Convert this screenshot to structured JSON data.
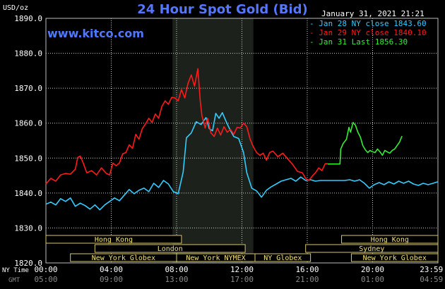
{
  "header": {
    "title": "24 Hour Spot Gold (Bid)",
    "website": "www.kitco.com",
    "timestamp": "January 31, 2021 21:21",
    "unit_label": "USD/oz"
  },
  "legend": [
    {
      "label": "Jan 28 NY close 1843.60",
      "color": "#33ccff"
    },
    {
      "label": "Jan 29 NY close 1840.10",
      "color": "#ff1a1a"
    },
    {
      "label": "Jan 31 Last 1856.30",
      "color": "#33ee33"
    }
  ],
  "markets": [
    {
      "label": "Hong Kong",
      "row": 0,
      "start": 0,
      "end": 8.3
    },
    {
      "label": "Hong Kong",
      "row": 0,
      "start": 18.1,
      "end": 24
    },
    {
      "label": "London",
      "row": 1,
      "start": 3,
      "end": 12.2
    },
    {
      "label": "Sydney",
      "row": 1,
      "start": 15.9,
      "end": 24
    },
    {
      "label": "New York Globex",
      "row": 2,
      "start": 1.5,
      "end": 8.0
    },
    {
      "label": "New York NYMEX",
      "row": 2,
      "start": 8.0,
      "end": 12.8
    },
    {
      "label": "NY Globex",
      "row": 2,
      "start": 12.8,
      "end": 16.2
    },
    {
      "label": "New York Globex",
      "row": 2,
      "start": 18.7,
      "end": 24
    }
  ],
  "chart_data": {
    "type": "line",
    "ylim": [
      1820,
      1890
    ],
    "yticks": [
      "1820.0",
      "1830.0",
      "1840.0",
      "1850.0",
      "1860.0",
      "1870.0",
      "1880.0",
      "1890.0"
    ],
    "xticks": [
      "00:00",
      "04:00",
      "08:00",
      "12:00",
      "16:00",
      "20:00",
      "23:59"
    ],
    "gmt_ticks": [
      "05:00",
      "09:00",
      "13:00",
      "17:00",
      "21:00",
      "01:00",
      "04:59"
    ],
    "row_labels": [
      "NY Time",
      "GMT"
    ],
    "shaded_range": [
      7.75,
      12.7
    ],
    "series": [
      {
        "name": "Jan 28 NY close 1843.60",
        "color": "#33ccff",
        "points": [
          [
            0.0,
            1836.8
          ],
          [
            0.3,
            1837.4
          ],
          [
            0.6,
            1836.6
          ],
          [
            0.9,
            1838.4
          ],
          [
            1.2,
            1837.6
          ],
          [
            1.5,
            1838.6
          ],
          [
            1.8,
            1836.2
          ],
          [
            2.1,
            1837.1
          ],
          [
            2.4,
            1836.4
          ],
          [
            2.7,
            1835.4
          ],
          [
            3.0,
            1836.6
          ],
          [
            3.3,
            1835.2
          ],
          [
            3.6,
            1836.6
          ],
          [
            3.9,
            1837.6
          ],
          [
            4.2,
            1838.6
          ],
          [
            4.5,
            1837.8
          ],
          [
            4.8,
            1839.4
          ],
          [
            5.1,
            1841.0
          ],
          [
            5.4,
            1839.8
          ],
          [
            5.7,
            1840.8
          ],
          [
            6.0,
            1841.4
          ],
          [
            6.3,
            1840.4
          ],
          [
            6.6,
            1842.8
          ],
          [
            6.9,
            1841.6
          ],
          [
            7.2,
            1843.6
          ],
          [
            7.5,
            1842.6
          ],
          [
            7.8,
            1840.4
          ],
          [
            8.1,
            1839.8
          ],
          [
            8.4,
            1846.0
          ],
          [
            8.6,
            1855.8
          ],
          [
            8.9,
            1857.2
          ],
          [
            9.2,
            1860.4
          ],
          [
            9.5,
            1859.6
          ],
          [
            9.8,
            1861.6
          ],
          [
            10.0,
            1858.4
          ],
          [
            10.2,
            1857.8
          ],
          [
            10.4,
            1862.8
          ],
          [
            10.6,
            1861.4
          ],
          [
            10.8,
            1863.0
          ],
          [
            11.0,
            1860.8
          ],
          [
            11.2,
            1858.8
          ],
          [
            11.5,
            1856.2
          ],
          [
            11.8,
            1855.6
          ],
          [
            12.1,
            1851.6
          ],
          [
            12.3,
            1845.8
          ],
          [
            12.6,
            1841.4
          ],
          [
            12.9,
            1840.6
          ],
          [
            13.2,
            1838.8
          ],
          [
            13.5,
            1840.8
          ],
          [
            13.8,
            1841.8
          ],
          [
            14.1,
            1842.6
          ],
          [
            14.4,
            1843.4
          ],
          [
            14.7,
            1843.8
          ],
          [
            15.0,
            1844.2
          ],
          [
            15.3,
            1843.4
          ],
          [
            15.6,
            1844.6
          ],
          [
            15.9,
            1843.6
          ],
          [
            16.2,
            1843.8
          ],
          [
            16.5,
            1843.4
          ],
          [
            16.8,
            1843.6
          ],
          [
            17.1,
            1843.6
          ],
          [
            17.4,
            1843.6
          ],
          [
            17.7,
            1843.6
          ],
          [
            18.0,
            1843.6
          ],
          [
            18.3,
            1843.6
          ],
          [
            18.6,
            1843.8
          ],
          [
            18.9,
            1843.4
          ],
          [
            19.2,
            1843.8
          ],
          [
            19.5,
            1842.8
          ],
          [
            19.8,
            1841.4
          ],
          [
            20.1,
            1842.4
          ],
          [
            20.4,
            1843.0
          ],
          [
            20.7,
            1842.4
          ],
          [
            21.0,
            1843.2
          ],
          [
            21.3,
            1842.6
          ],
          [
            21.6,
            1843.4
          ],
          [
            21.9,
            1842.8
          ],
          [
            22.2,
            1843.4
          ],
          [
            22.5,
            1842.6
          ],
          [
            22.8,
            1842.2
          ],
          [
            23.1,
            1842.8
          ],
          [
            23.4,
            1842.4
          ],
          [
            23.7,
            1842.8
          ],
          [
            23.98,
            1843.2
          ]
        ]
      },
      {
        "name": "Jan 29 NY close 1840.10",
        "color": "#ff1a1a",
        "points": [
          [
            0.0,
            1842.6
          ],
          [
            0.3,
            1844.2
          ],
          [
            0.6,
            1843.4
          ],
          [
            0.9,
            1845.2
          ],
          [
            1.2,
            1845.6
          ],
          [
            1.5,
            1845.4
          ],
          [
            1.8,
            1846.8
          ],
          [
            1.95,
            1850.2
          ],
          [
            2.1,
            1850.6
          ],
          [
            2.3,
            1848.4
          ],
          [
            2.5,
            1845.8
          ],
          [
            2.8,
            1846.4
          ],
          [
            3.1,
            1845.2
          ],
          [
            3.4,
            1847.2
          ],
          [
            3.7,
            1845.6
          ],
          [
            3.9,
            1845.2
          ],
          [
            4.1,
            1848.6
          ],
          [
            4.3,
            1847.8
          ],
          [
            4.5,
            1848.6
          ],
          [
            4.7,
            1851.2
          ],
          [
            4.9,
            1851.6
          ],
          [
            5.1,
            1853.8
          ],
          [
            5.3,
            1852.8
          ],
          [
            5.5,
            1856.8
          ],
          [
            5.7,
            1855.4
          ],
          [
            5.9,
            1858.4
          ],
          [
            6.1,
            1859.8
          ],
          [
            6.3,
            1861.4
          ],
          [
            6.5,
            1860.2
          ],
          [
            6.7,
            1862.6
          ],
          [
            6.9,
            1861.4
          ],
          [
            7.1,
            1864.8
          ],
          [
            7.3,
            1866.4
          ],
          [
            7.5,
            1865.4
          ],
          [
            7.7,
            1867.4
          ],
          [
            7.9,
            1867.2
          ],
          [
            8.1,
            1866.4
          ],
          [
            8.3,
            1869.6
          ],
          [
            8.5,
            1867.2
          ],
          [
            8.7,
            1871.4
          ],
          [
            8.9,
            1873.8
          ],
          [
            9.1,
            1870.6
          ],
          [
            9.3,
            1875.6
          ],
          [
            9.45,
            1866.4
          ],
          [
            9.55,
            1862.2
          ],
          [
            9.75,
            1858.6
          ],
          [
            9.9,
            1861.4
          ],
          [
            10.1,
            1857.2
          ],
          [
            10.3,
            1856.2
          ],
          [
            10.5,
            1858.6
          ],
          [
            10.7,
            1856.6
          ],
          [
            10.9,
            1859.0
          ],
          [
            11.1,
            1857.4
          ],
          [
            11.3,
            1858.2
          ],
          [
            11.5,
            1856.8
          ],
          [
            11.7,
            1858.8
          ],
          [
            11.9,
            1858.6
          ],
          [
            12.1,
            1860.0
          ],
          [
            12.3,
            1859.0
          ],
          [
            12.5,
            1855.4
          ],
          [
            12.7,
            1853.2
          ],
          [
            12.9,
            1851.6
          ],
          [
            13.1,
            1850.8
          ],
          [
            13.3,
            1851.4
          ],
          [
            13.5,
            1849.4
          ],
          [
            13.7,
            1851.6
          ],
          [
            13.9,
            1852.0
          ],
          [
            14.2,
            1850.4
          ],
          [
            14.5,
            1851.4
          ],
          [
            14.8,
            1849.8
          ],
          [
            15.1,
            1848.2
          ],
          [
            15.4,
            1846.2
          ],
          [
            15.7,
            1845.8
          ],
          [
            15.9,
            1844.2
          ],
          [
            16.1,
            1843.6
          ],
          [
            16.3,
            1844.8
          ],
          [
            16.5,
            1845.8
          ],
          [
            16.7,
            1847.2
          ],
          [
            16.9,
            1846.4
          ],
          [
            17.1,
            1848.4
          ],
          [
            17.25,
            1848.4
          ]
        ]
      },
      {
        "name": "Jan 31 Last 1856.30",
        "color": "#33ee33",
        "points": [
          [
            17.25,
            1848.3
          ],
          [
            17.5,
            1848.3
          ],
          [
            18.0,
            1848.3
          ],
          [
            18.05,
            1852.6
          ],
          [
            18.2,
            1854.2
          ],
          [
            18.4,
            1855.4
          ],
          [
            18.55,
            1858.8
          ],
          [
            18.65,
            1857.4
          ],
          [
            18.8,
            1860.2
          ],
          [
            18.95,
            1859.4
          ],
          [
            19.1,
            1857.4
          ],
          [
            19.25,
            1856.0
          ],
          [
            19.4,
            1853.6
          ],
          [
            19.55,
            1852.4
          ],
          [
            19.7,
            1851.6
          ],
          [
            19.85,
            1852.2
          ],
          [
            20.0,
            1851.8
          ],
          [
            20.15,
            1851.6
          ],
          [
            20.3,
            1852.6
          ],
          [
            20.45,
            1851.8
          ],
          [
            20.6,
            1850.8
          ],
          [
            20.75,
            1852.2
          ],
          [
            20.9,
            1851.8
          ],
          [
            21.05,
            1851.4
          ],
          [
            21.2,
            1852.2
          ],
          [
            21.35,
            1852.6
          ],
          [
            21.5,
            1853.6
          ],
          [
            21.65,
            1854.6
          ],
          [
            21.8,
            1856.3
          ]
        ]
      }
    ]
  }
}
